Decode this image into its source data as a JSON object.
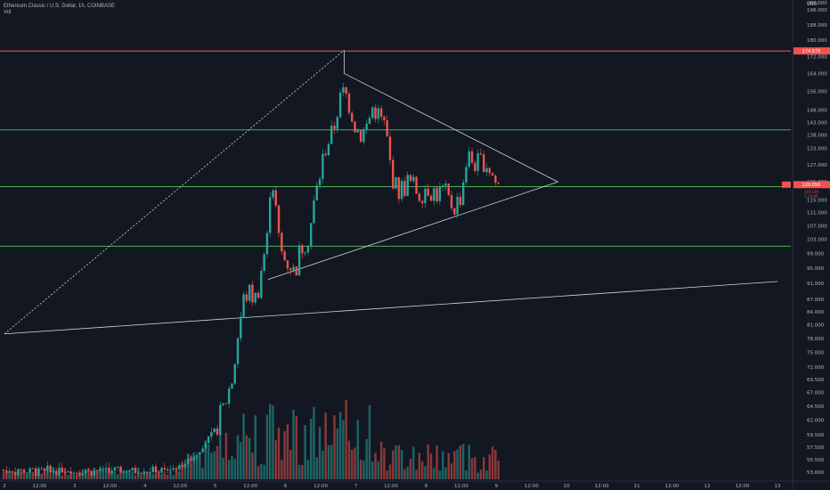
{
  "header": {
    "title": "Ethereum Classic / U.S. Dollar, 1h, COINBASE",
    "volume_label": "Vol"
  },
  "axes": {
    "y_currency": "USD",
    "y_ticks": [
      "200.000",
      "196.000",
      "188.000",
      "180.000",
      "172.000",
      "164.000",
      "156.000",
      "148.000",
      "143.000",
      "138.000",
      "133.000",
      "127.000",
      "121.000",
      "115.000",
      "111.000",
      "107.000",
      "103.000",
      "99.000",
      "95.000",
      "91.000",
      "87.000",
      "84.000",
      "81.000",
      "78.000",
      "75.000",
      "72.000",
      "69.500",
      "67.000",
      "64.500",
      "62.000",
      "59.500",
      "57.500",
      "55.500",
      "53.600"
    ],
    "x_ticks": [
      "2",
      "12:00",
      "3",
      "12:00",
      "4",
      "12:00",
      "5",
      "12:00",
      "6",
      "12:00",
      "7",
      "12:00",
      "8",
      "12:00",
      "9",
      "12:00",
      "10",
      "12:00",
      "11",
      "12:00",
      "12",
      "12:00",
      "13"
    ]
  },
  "price_tags": {
    "red_line": "174.670",
    "current_price": "120.050",
    "sub_a": "119.130",
    "sub_b": "1:13:45"
  },
  "colors": {
    "background": "#131722",
    "up": "#26a69a",
    "down": "#ef5350",
    "horizontal_red": "#ef5350",
    "horizontal_green": "#4caf50",
    "trendline": "#d1d4dc",
    "axis_text": "#b2b5be"
  },
  "chart_data": {
    "type": "candlestick",
    "symbol": "Ethereum Classic / U.S. Dollar",
    "interval": "1h",
    "exchange": "COINBASE",
    "price_scale": "log",
    "y_range": [
      53.6,
      200
    ],
    "x_range_days": [
      "2",
      "13"
    ],
    "horizontal_levels": [
      {
        "price": 174.67,
        "color": "red"
      },
      {
        "price": 140.0,
        "color": "green"
      },
      {
        "price": 119.4,
        "color": "green"
      },
      {
        "price": 101.0,
        "color": "green"
      }
    ],
    "trendlines": [
      {
        "from": {
          "t": "2 00:00",
          "price": 79
        },
        "to": {
          "t": "13 00:00",
          "price": 91.5
        },
        "style": "solid"
      },
      {
        "from": {
          "t": "2 00:00",
          "price": 79
        },
        "to": {
          "t": "6 20:00",
          "price": 175
        },
        "style": "dashed"
      },
      {
        "from": {
          "t": "6 20:00",
          "price": 175
        },
        "to": {
          "t": "6 20:00",
          "price": 164
        },
        "style": "solid"
      },
      {
        "from": {
          "t": "6 20:00",
          "price": 164
        },
        "to": {
          "t": "9 21:00",
          "price": 121
        },
        "style": "solid"
      },
      {
        "from": {
          "t": "5 18:00",
          "price": 92
        },
        "to": {
          "t": "9 21:00",
          "price": 121
        },
        "style": "solid"
      }
    ],
    "candles_close_path": [
      [
        "4 06:00",
        53.8
      ],
      [
        "4 12:00",
        54.4
      ],
      [
        "4 18:00",
        56.5
      ],
      [
        "5 00:00",
        60.5
      ],
      [
        "5 03:00",
        64.5
      ],
      [
        "5 06:00",
        70
      ],
      [
        "5 08:00",
        80
      ],
      [
        "5 10:00",
        88
      ],
      [
        "5 12:00",
        88.5
      ],
      [
        "5 14:00",
        87
      ],
      [
        "5 16:00",
        96
      ],
      [
        "5 18:00",
        104
      ],
      [
        "5 19:00",
        126
      ],
      [
        "5 20:00",
        118
      ],
      [
        "5 22:00",
        100
      ],
      [
        "6 00:00",
        97
      ],
      [
        "6 02:00",
        96
      ],
      [
        "6 03:00",
        93
      ],
      [
        "6 04:00",
        97
      ],
      [
        "6 06:00",
        102
      ],
      [
        "6 08:00",
        104
      ],
      [
        "6 10:00",
        115
      ],
      [
        "6 12:00",
        125
      ],
      [
        "6 14:00",
        135
      ],
      [
        "6 16:00",
        138
      ],
      [
        "6 18:00",
        150
      ],
      [
        "6 20:00",
        156
      ],
      [
        "6 22:00",
        150
      ],
      [
        "7 00:00",
        141
      ],
      [
        "7 02:00",
        138
      ],
      [
        "7 04:00",
        142
      ],
      [
        "7 06:00",
        150
      ],
      [
        "7 08:00",
        145
      ],
      [
        "7 10:00",
        141
      ],
      [
        "7 12:00",
        125
      ],
      [
        "7 14:00",
        118
      ],
      [
        "7 16:00",
        119
      ],
      [
        "7 18:00",
        121
      ],
      [
        "7 20:00",
        119
      ],
      [
        "7 22:00",
        117
      ],
      [
        "8 00:00",
        120
      ],
      [
        "8 02:00",
        118
      ],
      [
        "8 04:00",
        117
      ],
      [
        "8 06:00",
        118
      ],
      [
        "8 08:00",
        114
      ],
      [
        "8 10:00",
        113
      ],
      [
        "8 12:00",
        117
      ],
      [
        "8 14:00",
        130
      ],
      [
        "8 16:00",
        128
      ],
      [
        "8 18:00",
        127
      ],
      [
        "8 20:00",
        129
      ],
      [
        "8 22:00",
        125
      ],
      [
        "9 00:00",
        120
      ],
      [
        "9 01:00",
        120.05
      ]
    ],
    "volume_profile": "spikes around day 5 12:00 through day 7, smaller afterwards"
  }
}
